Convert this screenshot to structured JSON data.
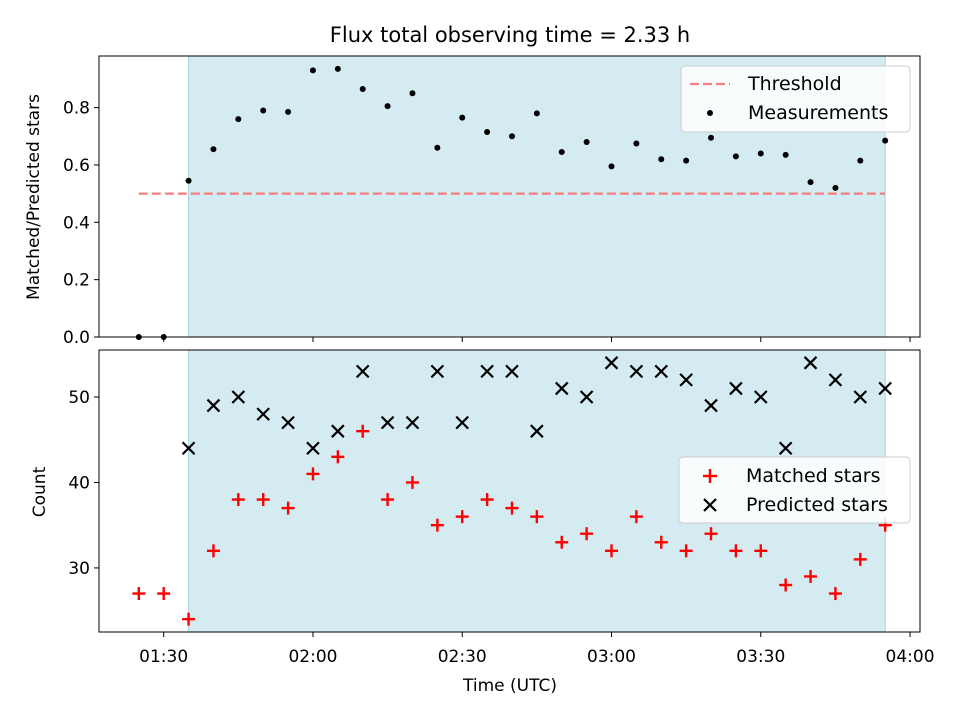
{
  "chart_data": [
    {
      "type": "scatter",
      "title": "Flux total observing time = 2.33 h",
      "ylabel": "Matched/Predicted stars",
      "ylim": [
        0.0,
        0.98
      ],
      "yticks": [
        "0.0",
        "0.2",
        "0.4",
        "0.6",
        "0.8"
      ],
      "ytick_values": [
        0.0,
        0.2,
        0.4,
        0.6,
        0.8
      ],
      "shaded_region": {
        "x_start": "01:35",
        "x_end": "03:55",
        "color": "#d4ebf1"
      },
      "threshold": {
        "name": "Threshold",
        "value": 0.5,
        "x_start": "01:25",
        "x_end": "03:55",
        "color": "#f08080"
      },
      "legend": {
        "placement": "top-right",
        "entries": [
          "Threshold",
          "Measurements"
        ]
      },
      "series": [
        {
          "name": "Measurements",
          "color": "#000000",
          "marker": "dot",
          "x": [
            "01:25",
            "01:30",
            "01:35",
            "01:40",
            "01:45",
            "01:50",
            "01:55",
            "02:00",
            "02:05",
            "02:10",
            "02:15",
            "02:20",
            "02:25",
            "02:30",
            "02:35",
            "02:40",
            "02:45",
            "02:50",
            "02:55",
            "03:00",
            "03:05",
            "03:10",
            "03:15",
            "03:20",
            "03:25",
            "03:30",
            "03:35",
            "03:40",
            "03:45",
            "03:50",
            "03:55"
          ],
          "y": [
            0.0,
            0.0,
            0.545,
            0.655,
            0.76,
            0.79,
            0.785,
            0.93,
            0.935,
            0.865,
            0.805,
            0.85,
            0.66,
            0.765,
            0.715,
            0.7,
            0.78,
            0.645,
            0.68,
            0.595,
            0.675,
            0.62,
            0.615,
            0.695,
            0.63,
            0.64,
            0.635,
            0.54,
            0.52,
            0.615,
            0.685
          ]
        }
      ]
    },
    {
      "type": "scatter",
      "xlabel": "Time (UTC)",
      "ylabel": "Count",
      "ylim": [
        22.5,
        55.5
      ],
      "yticks": [
        "30",
        "40",
        "50"
      ],
      "ytick_values": [
        30,
        40,
        50
      ],
      "xticks": [
        "01:30",
        "02:00",
        "02:30",
        "03:00",
        "03:30",
        "04:00"
      ],
      "xlim": [
        "01:17",
        "04:02"
      ],
      "shaded_region": {
        "x_start": "01:35",
        "x_end": "03:55",
        "color": "#d4ebf1"
      },
      "legend": {
        "placement": "center-right",
        "entries": [
          "Matched stars",
          "Predicted stars"
        ]
      },
      "series": [
        {
          "name": "Matched stars",
          "color": "#ff0000",
          "marker": "plus",
          "x": [
            "01:25",
            "01:30",
            "01:35",
            "01:40",
            "01:45",
            "01:50",
            "01:55",
            "02:00",
            "02:05",
            "02:10",
            "02:15",
            "02:20",
            "02:25",
            "02:30",
            "02:35",
            "02:40",
            "02:45",
            "02:50",
            "02:55",
            "03:00",
            "03:05",
            "03:10",
            "03:15",
            "03:20",
            "03:25",
            "03:30",
            "03:35",
            "03:40",
            "03:45",
            "03:50",
            "03:55"
          ],
          "y": [
            27,
            27,
            24,
            32,
            38,
            38,
            37,
            41,
            43,
            46,
            38,
            40,
            35,
            36,
            38,
            37,
            36,
            33,
            34,
            32,
            36,
            33,
            32,
            34,
            32,
            32,
            28,
            29,
            27,
            31,
            35
          ]
        },
        {
          "name": "Predicted stars",
          "color": "#000000",
          "marker": "x",
          "x": [
            "01:35",
            "01:40",
            "01:45",
            "01:50",
            "01:55",
            "02:00",
            "02:05",
            "02:10",
            "02:15",
            "02:20",
            "02:25",
            "02:30",
            "02:35",
            "02:40",
            "02:45",
            "02:50",
            "02:55",
            "03:00",
            "03:05",
            "03:10",
            "03:15",
            "03:20",
            "03:25",
            "03:30",
            "03:35",
            "03:40",
            "03:45",
            "03:50",
            "03:55"
          ],
          "y": [
            44,
            49,
            50,
            48,
            47,
            44,
            46,
            53,
            47,
            47,
            53,
            47,
            53,
            53,
            46,
            51,
            50,
            54,
            53,
            53,
            52,
            49,
            51,
            50,
            44,
            54,
            52,
            50,
            51
          ]
        }
      ]
    }
  ]
}
